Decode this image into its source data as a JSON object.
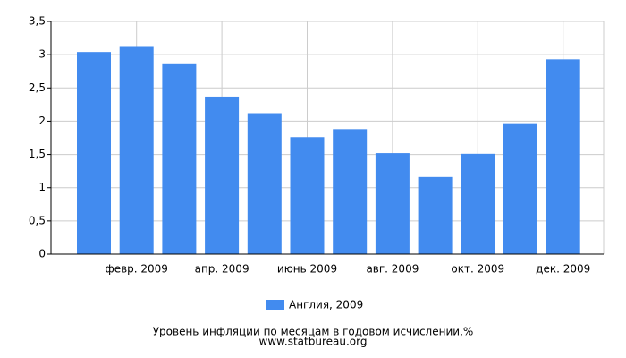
{
  "chart_data": {
    "type": "bar",
    "categories": [
      null,
      "февр. 2009",
      null,
      "апр. 2009",
      null,
      "июнь 2009",
      null,
      "авг. 2009",
      null,
      "окт. 2009",
      null,
      "дек. 2009"
    ],
    "series": [
      {
        "name": "Англия, 2009",
        "color": "#428bef",
        "values": [
          3.04,
          3.13,
          2.87,
          2.37,
          2.12,
          1.76,
          1.88,
          1.52,
          1.16,
          1.51,
          1.97,
          2.93
        ]
      }
    ],
    "ylim": [
      0,
      3.5
    ],
    "yticks": [
      0,
      {
        "value": 0.5,
        "label": "0,5"
      },
      1,
      {
        "value": 1.5,
        "label": "1,5"
      },
      2,
      {
        "value": 2.5,
        "label": "2,5"
      },
      3,
      {
        "value": 3.5,
        "label": "3,5"
      }
    ],
    "grid": true,
    "legend": "bottom",
    "xlabel": "Уровень инфляции по месяцам в годовом исчислении,%",
    "source": "www.statbureau.org"
  }
}
